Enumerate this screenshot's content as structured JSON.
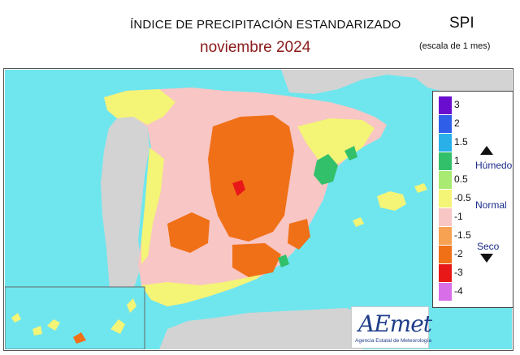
{
  "header": {
    "title": "ÍNDICE DE PRECIPITACIÓN ESTANDARIZADO",
    "subtitle": "noviembre  2024",
    "index_name": "SPI",
    "scale_note": "(escala de 1 mes)"
  },
  "legend": {
    "items": [
      {
        "label": "3",
        "color": "#6a0dcf"
      },
      {
        "label": "2",
        "color": "#2f5fe8"
      },
      {
        "label": "1.5",
        "color": "#2ab0e8"
      },
      {
        "label": "1",
        "color": "#33c06a"
      },
      {
        "label": "0.5",
        "color": "#a9ea73"
      },
      {
        "label": "-0.5",
        "color": "#f4f476"
      },
      {
        "label": "-1",
        "color": "#f8c6c4"
      },
      {
        "label": "-1.5",
        "color": "#f7a252"
      },
      {
        "label": "-2",
        "color": "#f07018"
      },
      {
        "label": "-3",
        "color": "#e81818"
      },
      {
        "label": "-4",
        "color": "#d86ee8"
      }
    ],
    "categories": {
      "wet": "Húmedo",
      "normal": "Normal",
      "dry": "Seco"
    }
  },
  "map": {
    "sea_color": "#6fe6ee",
    "foreign_land_color": "#d3d3d3",
    "dominant_color": "#f8c6c4",
    "dry_color": "#f07018",
    "very_dry_color": "#e81818",
    "normal_color": "#f4f476",
    "wet_color": "#33c06a"
  },
  "logo": {
    "name": "AEmet",
    "full_name": "Agencia Estatal de Meteorología"
  }
}
